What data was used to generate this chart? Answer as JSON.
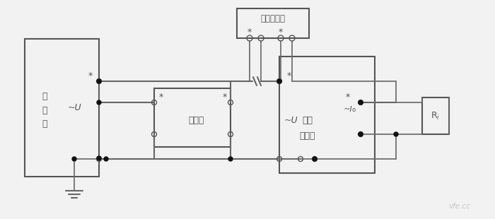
{
  "bg_color": "#f0f0f0",
  "line_color": "#666666",
  "box_color": "#555555",
  "dot_color": "#111111",
  "text_color": "#555555",
  "labels": {
    "signal_source_1": "信",
    "signal_source_2": "号",
    "signal_source_3": "源",
    "tilde_u_left": "~U",
    "divider": "分压器",
    "standard_meter": "标准相位计",
    "voltage_transmitter_1": "电压",
    "voltage_transmitter_2": "变送器",
    "tilde_u_right": "~U",
    "neg_io": "~I",
    "neg_io_sub": "o",
    "ri": "R",
    "ri_sub": "i",
    "star": "*"
  },
  "watermark": "vfe.cc"
}
